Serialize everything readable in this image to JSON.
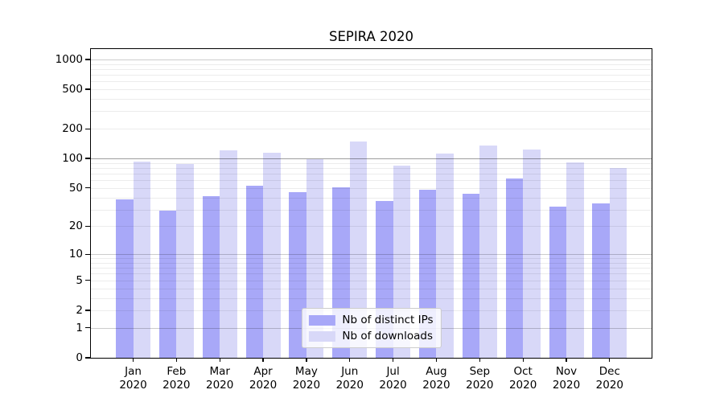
{
  "title": "SEPIRA 2020",
  "colors": {
    "ips": "#a8a8f8",
    "downloads": "#d8d8f8",
    "axis": "#000000",
    "grid_minor": "#ececec",
    "grid_major": "#cccccc",
    "grid_emphasis": "#a0a0a0",
    "legend_border": "#cccccc"
  },
  "legend": {
    "items": [
      {
        "label": "Nb of distinct IPs",
        "color_key": "ips"
      },
      {
        "label": "Nb of downloads",
        "color_key": "downloads"
      }
    ]
  },
  "chart_data": {
    "type": "bar",
    "title": "SEPIRA 2020",
    "xlabel": "",
    "ylabel": "",
    "categories": [
      "Jan 2020",
      "Feb 2020",
      "Mar 2020",
      "Apr 2020",
      "May 2020",
      "Jun 2020",
      "Jul 2020",
      "Aug 2020",
      "Sep 2020",
      "Oct 2020",
      "Nov 2020",
      "Dec 2020"
    ],
    "series": [
      {
        "name": "Nb of distinct IPs",
        "color_key": "ips",
        "values": [
          38,
          29,
          41,
          53,
          45,
          51,
          37,
          48,
          44,
          62,
          32,
          35
        ]
      },
      {
        "name": "Nb of downloads",
        "color_key": "downloads",
        "values": [
          93,
          88,
          121,
          115,
          98,
          150,
          85,
          112,
          135,
          123,
          91,
          80
        ]
      }
    ],
    "y_scale": "log10(1+x)",
    "y_ticks": [
      0,
      1,
      2,
      5,
      10,
      20,
      50,
      100,
      200,
      500,
      1000
    ],
    "y_tick_labels": [
      "0",
      "1",
      "2",
      "5",
      "10",
      "20",
      "50",
      "100",
      "200",
      "500",
      "1000"
    ],
    "ylim": [
      0,
      1273
    ],
    "grid": true,
    "legend_position": "lower center"
  }
}
